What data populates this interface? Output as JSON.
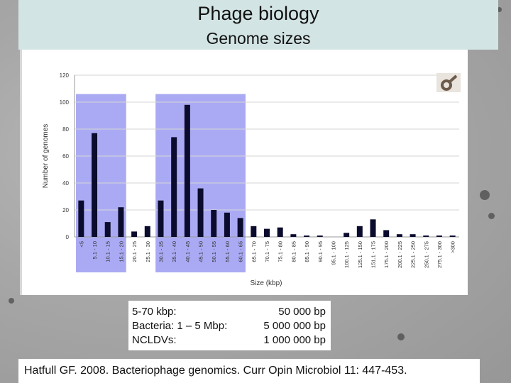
{
  "slide": {
    "title": "Phage biology",
    "subtitle": "Genome sizes"
  },
  "info": [
    {
      "label": "5-70 kbp:",
      "value": "50 000 bp"
    },
    {
      "label": "Bacteria: 1 – 5 Mbp:",
      "value": "5 000 000 bp"
    },
    {
      "label": "NCLDVs:",
      "value": "1 000 000 bp"
    }
  ],
  "reference": "Hatfull GF. 2008. Bacteriophage genomics. Curr Opin Microbiol 11: 447-453.",
  "chart_data": {
    "type": "bar",
    "xlabel": "Size (kbp)",
    "ylabel": "Number of genomes",
    "ylim": [
      0,
      120
    ],
    "yticks": [
      0,
      20,
      40,
      60,
      80,
      100,
      120
    ],
    "grid": true,
    "categories": [
      "<5",
      "5.1 - 10",
      "10.1 - 15",
      "15.1 - 20",
      "20.1 - 25",
      "25.1 - 30",
      "30.1 - 35",
      "35.1 - 40",
      "40.1 - 45",
      "45.1 - 50",
      "50.1 - 55",
      "55.1 - 60",
      "60.1 - 65",
      "65.1 - 70",
      "70.1 - 75",
      "75.1 - 80",
      "80.1 - 85",
      "85.1 - 90",
      "90.1 - 95",
      "95.1 - 100",
      "100.1 - 125",
      "125.1 - 150",
      "151.1 - 175",
      "175.1 - 200",
      "200.1 - 225",
      "225.1 - 250",
      "250.1 - 275",
      "275.1 - 300",
      ">300"
    ],
    "values": [
      27,
      77,
      11,
      22,
      4,
      8,
      27,
      74,
      98,
      36,
      20,
      18,
      14,
      8,
      6,
      7,
      2,
      1,
      1,
      0,
      3,
      8,
      13,
      5,
      2,
      2,
      1,
      1,
      1
    ],
    "highlight_ranges": [
      [
        0,
        3
      ],
      [
        6,
        12
      ]
    ],
    "colors": {
      "bar": "#0b0b2e",
      "highlight": "#aaaaf4",
      "grid": "#d6d6d6",
      "axis": "#9a9a9a",
      "logo": "#6e5a4a"
    }
  }
}
